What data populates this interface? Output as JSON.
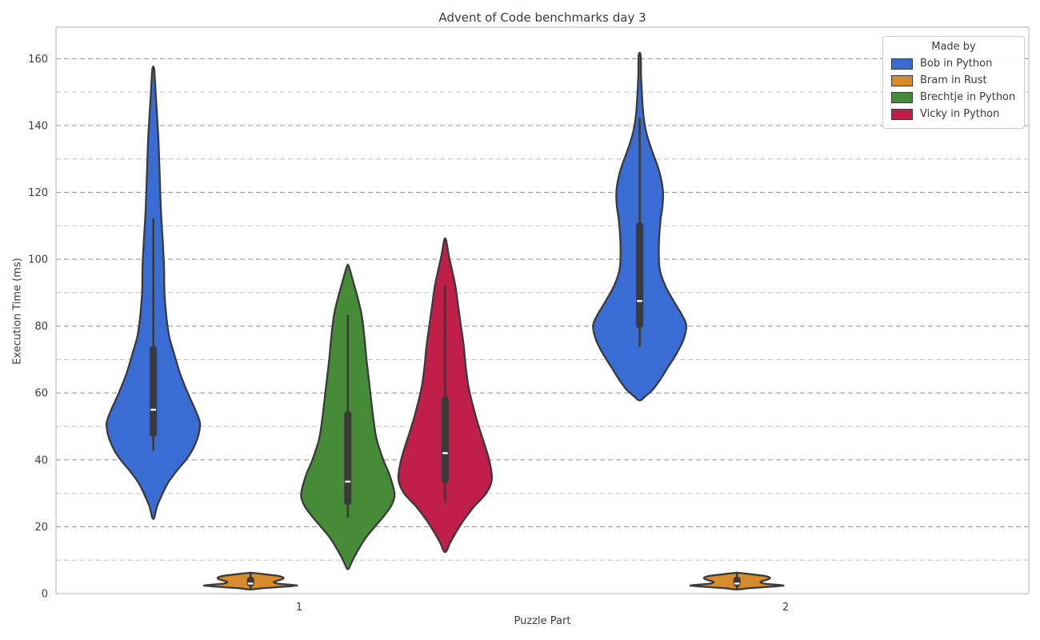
{
  "title": "Advent of Code benchmarks day 3",
  "axes": {
    "xlabel": "Puzzle Part",
    "ylabel": "Execution Time (ms)"
  },
  "legend": {
    "title": "Made by",
    "position": "upper right",
    "items": [
      {
        "label": "Bob in Python",
        "color": "#3a6dd4"
      },
      {
        "label": "Bram in Rust",
        "color": "#d68c2c"
      },
      {
        "label": "Brechtje in Python",
        "color": "#458b38"
      },
      {
        "label": "Vicky in Python",
        "color": "#bf1f48"
      }
    ]
  },
  "colors": {
    "violin_edge": "#3a3a3a",
    "inner_box": "#3a3a3a",
    "median_mark": "#ffffff",
    "grid_major": "#9a9a9a",
    "grid_minor": "#c7c7c7",
    "spine": "#cccccc",
    "text": "#3d3d3d"
  },
  "chart_data": {
    "type": "violin",
    "title": "Advent of Code benchmarks day 3",
    "xlabel": "Puzzle Part",
    "ylabel": "Execution Time (ms)",
    "categories": [
      "1",
      "2"
    ],
    "series": [
      "Bob in Python",
      "Bram in Rust",
      "Brechtje in Python",
      "Vicky in Python"
    ],
    "ylim": [
      0,
      169.4
    ],
    "yticks": [
      0,
      20,
      40,
      60,
      80,
      100,
      120,
      140,
      160
    ],
    "yticks_minor": [
      10,
      30,
      50,
      70,
      90,
      110,
      130,
      150
    ],
    "grid": "horizontal dashed, major and minor",
    "legend_position": "upper right",
    "violins": [
      {
        "series": "Bob in Python",
        "series_index": 0,
        "category": "1",
        "color": "#3a6dd4",
        "stats": {
          "min": 22.7,
          "whisker_low": 43,
          "q1": 47,
          "median": 55,
          "q3": 74,
          "whisker_high": 112,
          "max": 157
        },
        "kde_profile": [
          [
            156.8,
            0.02
          ],
          [
            150,
            0.05
          ],
          [
            143,
            0.08
          ],
          [
            136,
            0.11
          ],
          [
            128,
            0.13
          ],
          [
            120,
            0.15
          ],
          [
            113,
            0.17
          ],
          [
            106,
            0.2
          ],
          [
            98,
            0.23
          ],
          [
            90,
            0.24
          ],
          [
            83,
            0.28
          ],
          [
            77,
            0.34
          ],
          [
            72,
            0.44
          ],
          [
            66,
            0.57
          ],
          [
            60,
            0.74
          ],
          [
            55,
            0.9
          ],
          [
            51,
            1.0
          ],
          [
            47,
            0.96
          ],
          [
            43,
            0.84
          ],
          [
            40,
            0.7
          ],
          [
            37,
            0.52
          ],
          [
            33,
            0.31
          ],
          [
            29,
            0.17
          ],
          [
            26,
            0.08
          ],
          [
            22.7,
            0.02
          ]
        ]
      },
      {
        "series": "Bram in Rust",
        "series_index": 1,
        "category": "1",
        "color": "#d68c2c",
        "stats": {
          "min": 1.3,
          "whisker_low": 1.5,
          "q1": 2.1,
          "median": 3.0,
          "q3": 5.0,
          "whisker_high": 6.0,
          "max": 6.2
        },
        "kde_profile": [
          [
            6.2,
            0.04
          ],
          [
            5.8,
            0.3
          ],
          [
            5.3,
            0.58
          ],
          [
            4.8,
            0.7
          ],
          [
            4.3,
            0.68
          ],
          [
            3.8,
            0.56
          ],
          [
            3.4,
            0.5
          ],
          [
            3.0,
            0.58
          ],
          [
            2.7,
            0.8
          ],
          [
            2.45,
            1.0
          ],
          [
            2.2,
            0.85
          ],
          [
            1.9,
            0.55
          ],
          [
            1.6,
            0.25
          ],
          [
            1.3,
            0.06
          ]
        ]
      },
      {
        "series": "Brechtje in Python",
        "series_index": 2,
        "category": "1",
        "color": "#458b38",
        "stats": {
          "min": 7.5,
          "whisker_low": 23,
          "q1": 26.5,
          "median": 33.5,
          "q3": 54.5,
          "whisker_high": 83,
          "max": 98
        },
        "kde_profile": [
          [
            97.8,
            0.02
          ],
          [
            93,
            0.12
          ],
          [
            88,
            0.22
          ],
          [
            83,
            0.3
          ],
          [
            76,
            0.36
          ],
          [
            70,
            0.4
          ],
          [
            64,
            0.45
          ],
          [
            58,
            0.5
          ],
          [
            52,
            0.55
          ],
          [
            46,
            0.62
          ],
          [
            40,
            0.76
          ],
          [
            36,
            0.88
          ],
          [
            32,
            0.97
          ],
          [
            29,
            1.0
          ],
          [
            26,
            0.92
          ],
          [
            23,
            0.76
          ],
          [
            20,
            0.58
          ],
          [
            17,
            0.4
          ],
          [
            14,
            0.26
          ],
          [
            11,
            0.14
          ],
          [
            9,
            0.07
          ],
          [
            7.5,
            0.02
          ]
        ]
      },
      {
        "series": "Vicky in Python",
        "series_index": 3,
        "category": "1",
        "color": "#bf1f48",
        "stats": {
          "min": 12.7,
          "whisker_low": 27.5,
          "q1": 33,
          "median": 42,
          "q3": 59,
          "whisker_high": 92,
          "max": 106
        },
        "kde_profile": [
          [
            105.7,
            0.02
          ],
          [
            101,
            0.08
          ],
          [
            96,
            0.16
          ],
          [
            92,
            0.22
          ],
          [
            86,
            0.28
          ],
          [
            80,
            0.34
          ],
          [
            74,
            0.4
          ],
          [
            68,
            0.44
          ],
          [
            62,
            0.5
          ],
          [
            56,
            0.6
          ],
          [
            50,
            0.72
          ],
          [
            44,
            0.86
          ],
          [
            39,
            0.96
          ],
          [
            34,
            1.0
          ],
          [
            30,
            0.88
          ],
          [
            26,
            0.62
          ],
          [
            22,
            0.4
          ],
          [
            18,
            0.22
          ],
          [
            15,
            0.1
          ],
          [
            12.7,
            0.03
          ]
        ]
      },
      {
        "series": "Bob in Python",
        "series_index": 0,
        "category": "2",
        "color": "#3a6dd4",
        "stats": {
          "min": 58,
          "whisker_low": 74,
          "q1": 79.5,
          "median": 87.5,
          "q3": 111,
          "whisker_high": 142,
          "max": 161
        },
        "kde_profile": [
          [
            161,
            0.02
          ],
          [
            155,
            0.03
          ],
          [
            149,
            0.05
          ],
          [
            143,
            0.08
          ],
          [
            138,
            0.14
          ],
          [
            133,
            0.25
          ],
          [
            128,
            0.38
          ],
          [
            124,
            0.46
          ],
          [
            120,
            0.5
          ],
          [
            116,
            0.49
          ],
          [
            112,
            0.45
          ],
          [
            107,
            0.42
          ],
          [
            102,
            0.41
          ],
          [
            97,
            0.43
          ],
          [
            92,
            0.55
          ],
          [
            87,
            0.75
          ],
          [
            83,
            0.92
          ],
          [
            80,
            1.0
          ],
          [
            76,
            0.94
          ],
          [
            72,
            0.8
          ],
          [
            68,
            0.62
          ],
          [
            64,
            0.44
          ],
          [
            61,
            0.28
          ],
          [
            59,
            0.12
          ],
          [
            57.9,
            0.03
          ]
        ]
      },
      {
        "series": "Bram in Rust",
        "series_index": 1,
        "category": "2",
        "color": "#d68c2c",
        "stats": {
          "min": 1.3,
          "whisker_low": 1.5,
          "q1": 2.1,
          "median": 3.0,
          "q3": 5.0,
          "whisker_high": 6.0,
          "max": 6.2
        },
        "kde_profile": [
          [
            6.2,
            0.04
          ],
          [
            5.8,
            0.3
          ],
          [
            5.3,
            0.58
          ],
          [
            4.8,
            0.7
          ],
          [
            4.3,
            0.68
          ],
          [
            3.8,
            0.56
          ],
          [
            3.4,
            0.5
          ],
          [
            3.0,
            0.58
          ],
          [
            2.7,
            0.8
          ],
          [
            2.45,
            1.0
          ],
          [
            2.2,
            0.85
          ],
          [
            1.9,
            0.55
          ],
          [
            1.6,
            0.25
          ],
          [
            1.3,
            0.06
          ]
        ]
      }
    ]
  }
}
